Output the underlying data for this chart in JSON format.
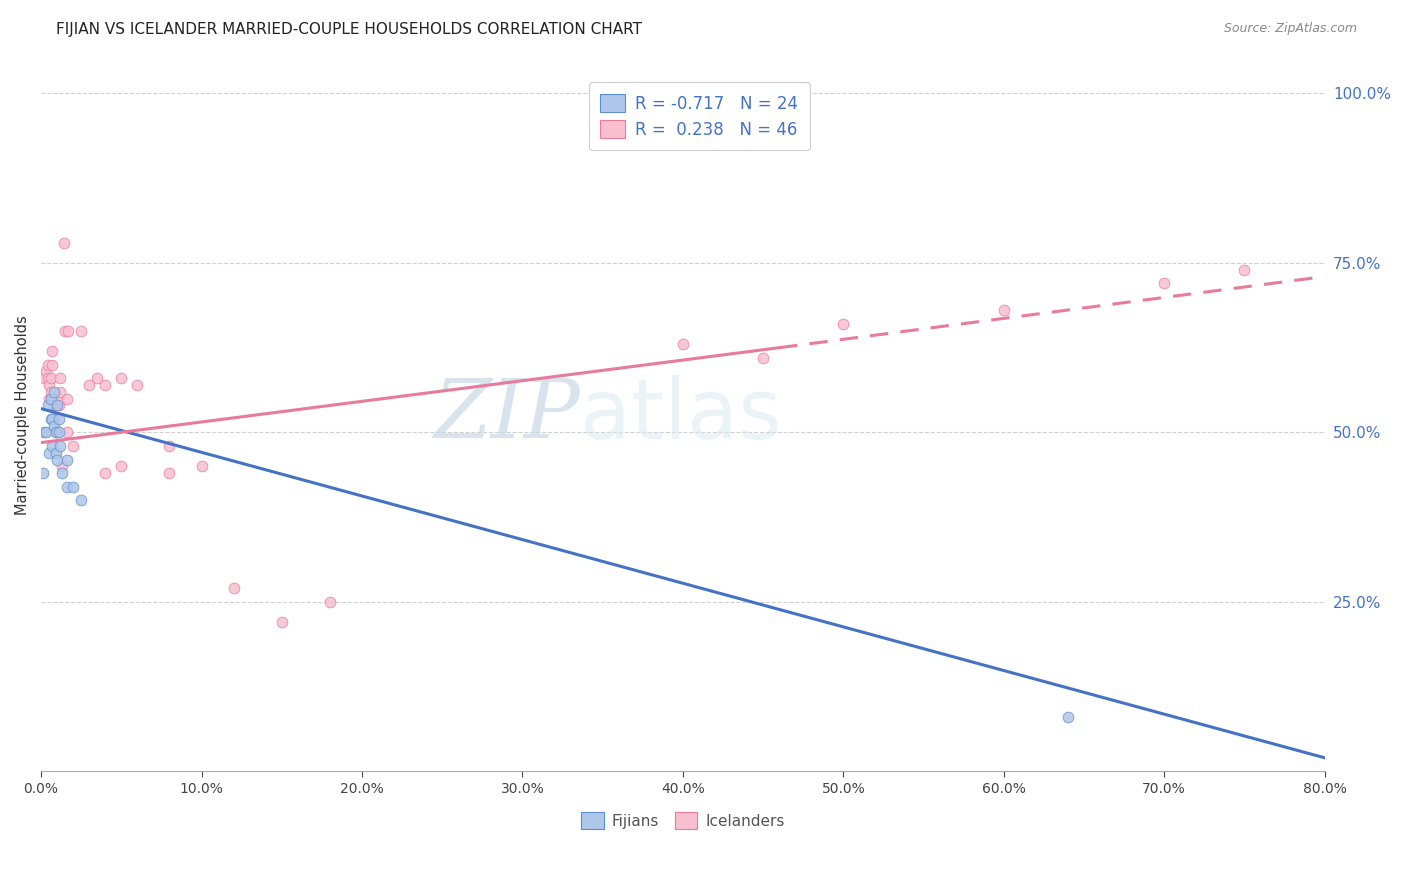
{
  "title": "FIJIAN VS ICELANDER MARRIED-COUPLE HOUSEHOLDS CORRELATION CHART",
  "source": "Source: ZipAtlas.com",
  "ylabel": "Married-couple Households",
  "right_yticks": [
    "100.0%",
    "75.0%",
    "50.0%",
    "25.0%"
  ],
  "right_ytick_vals": [
    1.0,
    0.75,
    0.5,
    0.25
  ],
  "fijians_legend": "R = -0.717   N = 24",
  "icelanders_legend": "R =  0.238   N = 46",
  "fijian_scatter_color": "#aec6e8",
  "icelander_scatter_color": "#f9bfd0",
  "fijian_line_color": "#4472c4",
  "icelander_line_color": "#e87a9a",
  "watermark_zip": "ZIP",
  "watermark_atlas": "atlas",
  "xmin": 0.0,
  "xmax": 0.8,
  "ymin": 0.0,
  "ymax": 1.05,
  "fijians_x": [
    0.001,
    0.002,
    0.003,
    0.004,
    0.005,
    0.006,
    0.006,
    0.007,
    0.007,
    0.008,
    0.008,
    0.009,
    0.009,
    0.01,
    0.01,
    0.011,
    0.011,
    0.012,
    0.013,
    0.016,
    0.016,
    0.02,
    0.025,
    0.64
  ],
  "fijians_y": [
    0.44,
    0.5,
    0.5,
    0.54,
    0.47,
    0.55,
    0.52,
    0.52,
    0.48,
    0.56,
    0.51,
    0.5,
    0.47,
    0.54,
    0.46,
    0.52,
    0.5,
    0.48,
    0.44,
    0.42,
    0.46,
    0.42,
    0.4,
    0.08
  ],
  "icelanders_x": [
    0.002,
    0.003,
    0.004,
    0.004,
    0.005,
    0.005,
    0.006,
    0.006,
    0.007,
    0.007,
    0.008,
    0.008,
    0.009,
    0.01,
    0.01,
    0.011,
    0.011,
    0.012,
    0.012,
    0.013,
    0.014,
    0.015,
    0.016,
    0.016,
    0.017,
    0.02,
    0.025,
    0.03,
    0.035,
    0.04,
    0.05,
    0.06,
    0.08,
    0.1,
    0.04,
    0.05,
    0.08,
    0.12,
    0.15,
    0.18,
    0.4,
    0.5,
    0.6,
    0.7,
    0.75,
    0.45
  ],
  "icelanders_y": [
    0.58,
    0.59,
    0.58,
    0.6,
    0.57,
    0.55,
    0.56,
    0.58,
    0.6,
    0.62,
    0.54,
    0.52,
    0.5,
    0.54,
    0.5,
    0.54,
    0.55,
    0.56,
    0.58,
    0.45,
    0.78,
    0.65,
    0.5,
    0.55,
    0.65,
    0.48,
    0.65,
    0.57,
    0.58,
    0.57,
    0.58,
    0.57,
    0.48,
    0.45,
    0.44,
    0.45,
    0.44,
    0.27,
    0.22,
    0.25,
    0.63,
    0.66,
    0.68,
    0.72,
    0.74,
    0.61
  ],
  "fijian_trend_start_x": 0.0,
  "fijian_trend_end_x": 0.8,
  "fijian_trend_start_y": 0.535,
  "fijian_trend_end_y": 0.02,
  "icelander_trend_start_x": 0.0,
  "icelander_trend_split_x": 0.46,
  "icelander_trend_end_x": 0.8,
  "icelander_trend_start_y": 0.485,
  "icelander_trend_split_y": 0.625,
  "icelander_trend_end_y": 0.73
}
